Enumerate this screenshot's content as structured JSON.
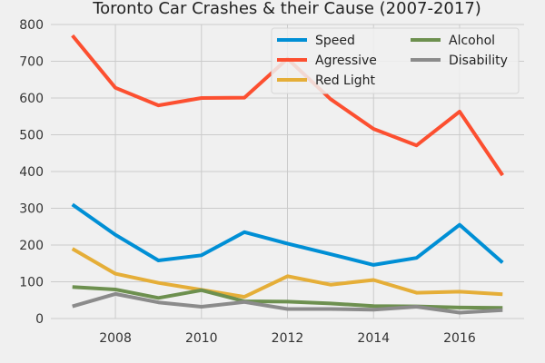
{
  "chart_data": {
    "type": "line",
    "title": "Toronto Car Crashes & their Cause (2007-2017)",
    "xlabel": "",
    "ylabel": "",
    "x": [
      2007,
      2008,
      2009,
      2010,
      2011,
      2012,
      2013,
      2014,
      2015,
      2016,
      2017
    ],
    "xlim": [
      2006.5,
      2017.5
    ],
    "ylim": [
      0,
      800
    ],
    "xticks": [
      2008,
      2010,
      2012,
      2014,
      2016
    ],
    "yticks": [
      0,
      100,
      200,
      300,
      400,
      500,
      600,
      700,
      800
    ],
    "grid": true,
    "legend_position": "top-right",
    "series": [
      {
        "name": "Speed",
        "color": "#008fd5",
        "values": [
          310,
          228,
          158,
          172,
          235,
          204,
          175,
          146,
          165,
          255,
          152
        ]
      },
      {
        "name": "Agressive",
        "color": "#fc4f30",
        "values": [
          770,
          628,
          580,
          600,
          601,
          707,
          597,
          516,
          471,
          563,
          390
        ]
      },
      {
        "name": "Red Light",
        "color": "#e5ae38",
        "values": [
          190,
          122,
          97,
          78,
          59,
          115,
          92,
          105,
          70,
          73,
          66
        ]
      },
      {
        "name": "Alcohol",
        "color": "#6d904f",
        "values": [
          86,
          79,
          56,
          77,
          47,
          46,
          41,
          34,
          33,
          30,
          29
        ]
      },
      {
        "name": "Disability",
        "color": "#8b8b8b",
        "values": [
          33,
          67,
          44,
          32,
          45,
          26,
          26,
          24,
          32,
          16,
          23
        ]
      }
    ]
  }
}
